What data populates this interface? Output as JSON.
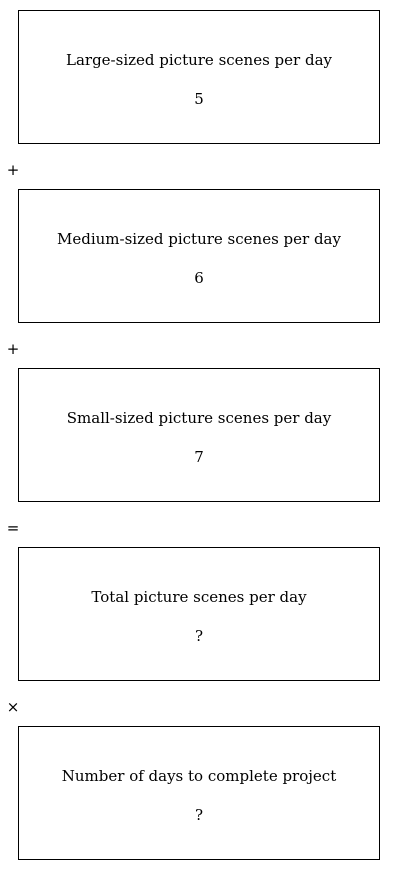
{
  "boxes": [
    {
      "label": "Large-sized picture scenes per day",
      "value": "5"
    },
    {
      "label": "Medium-sized picture scenes per day",
      "value": "6"
    },
    {
      "label": "Small-sized picture scenes per day",
      "value": "7"
    },
    {
      "label": "Total picture scenes per day",
      "value": "?"
    },
    {
      "label": "Number of days to complete project",
      "value": "?"
    }
  ],
  "operators": [
    "+",
    "+",
    "=",
    "×"
  ]
}
